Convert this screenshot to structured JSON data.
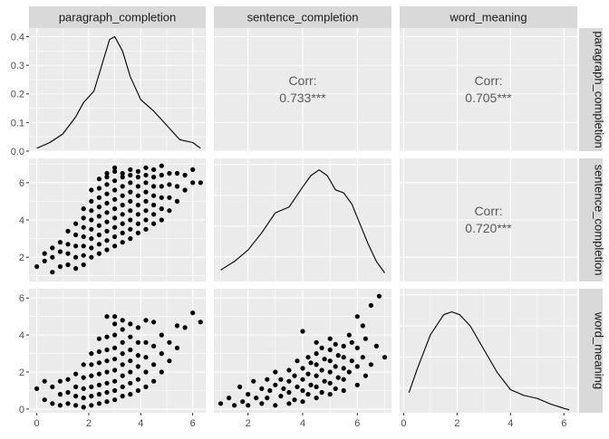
{
  "chart_data": {
    "type": "scatter-matrix",
    "variables": [
      "paragraph_completion",
      "sentence_completion",
      "word_meaning"
    ],
    "colors": {
      "panel_bg": "#EBEBEB",
      "strip_bg": "#D9D9D9",
      "grid": "#FFFFFF",
      "mark": "#000000",
      "corr_text": "#595959",
      "tick_text": "#4D4D4D"
    },
    "correlations": [
      {
        "row": 0,
        "col": 1,
        "label": "Corr:",
        "value": "0.733***"
      },
      {
        "row": 0,
        "col": 2,
        "label": "Corr:",
        "value": "0.705***"
      },
      {
        "row": 1,
        "col": 2,
        "label": "Corr:",
        "value": "0.720***"
      }
    ],
    "x_axes": [
      {
        "var": "paragraph_completion",
        "range": [
          -0.3,
          6.5
        ],
        "ticks": [
          0,
          2,
          4,
          6
        ],
        "tick_labels": [
          "0",
          "2",
          "4",
          "6"
        ]
      },
      {
        "var": "sentence_completion",
        "range": [
          0.75,
          7.25
        ],
        "ticks": [
          2,
          4,
          6
        ],
        "tick_labels": [
          "2",
          "4",
          "6"
        ]
      },
      {
        "var": "word_meaning",
        "range": [
          -0.15,
          6.5
        ],
        "ticks": [
          0,
          2,
          4,
          6
        ],
        "tick_labels": [
          "0",
          "2",
          "4",
          "6"
        ]
      }
    ],
    "y_axes": [
      {
        "var": "paragraph_completion",
        "range": [
          -0.02,
          0.43
        ],
        "ticks": [
          0.0,
          0.1,
          0.2,
          0.3,
          0.4
        ],
        "tick_labels": [
          "0.0",
          "0.1",
          "0.2",
          "0.3",
          "0.4"
        ]
      },
      {
        "var": "sentence_completion",
        "range": [
          0.7,
          7.3
        ],
        "ticks": [
          2,
          4,
          6
        ],
        "tick_labels": [
          "2",
          "4",
          "6"
        ]
      },
      {
        "var": "word_meaning",
        "range": [
          -0.2,
          6.5
        ],
        "ticks": [
          0,
          2,
          4,
          6
        ],
        "tick_labels": [
          "0",
          "2",
          "4",
          "6"
        ]
      }
    ],
    "density_range": [
      0,
      0.43
    ],
    "densities": [
      {
        "var": "paragraph_completion",
        "x": [
          0.0,
          0.5,
          1.0,
          1.5,
          1.8,
          2.2,
          2.5,
          2.8,
          3.0,
          3.3,
          3.6,
          4.0,
          4.5,
          5.0,
          5.5,
          6.0,
          6.3
        ],
        "y": [
          0.01,
          0.03,
          0.06,
          0.12,
          0.17,
          0.21,
          0.3,
          0.39,
          0.4,
          0.35,
          0.26,
          0.18,
          0.14,
          0.09,
          0.04,
          0.03,
          0.01
        ]
      },
      {
        "var": "sentence_completion",
        "x": [
          1.0,
          1.5,
          2.0,
          2.5,
          3.0,
          3.5,
          4.0,
          4.3,
          4.6,
          4.9,
          5.2,
          5.5,
          5.8,
          6.1,
          6.4,
          6.7,
          7.0
        ],
        "y": [
          0.04,
          0.07,
          0.11,
          0.17,
          0.24,
          0.26,
          0.33,
          0.37,
          0.39,
          0.37,
          0.32,
          0.31,
          0.27,
          0.2,
          0.13,
          0.07,
          0.03
        ]
      },
      {
        "var": "word_meaning",
        "x": [
          0.2,
          0.5,
          1.0,
          1.5,
          1.8,
          2.1,
          2.5,
          3.0,
          3.5,
          4.0,
          4.5,
          5.0,
          5.5,
          6.0,
          6.2
        ],
        "y": [
          0.07,
          0.15,
          0.27,
          0.34,
          0.35,
          0.34,
          0.3,
          0.22,
          0.14,
          0.08,
          0.06,
          0.05,
          0.03,
          0.015,
          0.01
        ]
      }
    ],
    "scatter_pc_sc": {
      "x": [
        0.0,
        0.3,
        0.3,
        0.6,
        0.6,
        0.6,
        0.9,
        0.9,
        0.9,
        1.2,
        1.2,
        1.2,
        1.2,
        1.5,
        1.5,
        1.5,
        1.5,
        1.5,
        1.8,
        1.8,
        1.8,
        1.8,
        1.8,
        1.8,
        1.8,
        2.1,
        2.1,
        2.1,
        2.1,
        2.1,
        2.1,
        2.1,
        2.1,
        2.4,
        2.4,
        2.4,
        2.4,
        2.4,
        2.4,
        2.4,
        2.4,
        2.4,
        2.7,
        2.7,
        2.7,
        2.7,
        2.7,
        2.7,
        2.7,
        2.7,
        2.7,
        2.7,
        3.0,
        3.0,
        3.0,
        3.0,
        3.0,
        3.0,
        3.0,
        3.0,
        3.0,
        3.0,
        3.3,
        3.3,
        3.3,
        3.3,
        3.3,
        3.3,
        3.3,
        3.3,
        3.3,
        3.6,
        3.6,
        3.6,
        3.6,
        3.6,
        3.6,
        3.6,
        3.6,
        3.6,
        3.9,
        3.9,
        3.9,
        3.9,
        3.9,
        3.9,
        3.9,
        3.9,
        4.2,
        4.2,
        4.2,
        4.2,
        4.2,
        4.2,
        4.2,
        4.2,
        4.5,
        4.5,
        4.5,
        4.5,
        4.5,
        4.5,
        4.5,
        4.8,
        4.8,
        4.8,
        4.8,
        4.8,
        4.8,
        5.1,
        5.1,
        5.1,
        5.1,
        5.4,
        5.4,
        5.4,
        5.7,
        5.7,
        6.0,
        6.0,
        6.3
      ],
      "y": [
        1.5,
        1.8,
        2.2,
        1.2,
        2.0,
        2.5,
        1.5,
        2.3,
        2.8,
        1.6,
        2.2,
        2.7,
        3.4,
        1.4,
        2.0,
        2.6,
        3.2,
        3.8,
        1.6,
        2.1,
        2.6,
        3.1,
        3.6,
        4.1,
        4.6,
        2.0,
        2.5,
        3.0,
        3.5,
        4.0,
        4.5,
        5.0,
        5.6,
        2.2,
        2.7,
        3.2,
        3.7,
        4.2,
        4.7,
        5.2,
        5.7,
        6.2,
        2.4,
        2.9,
        3.4,
        3.9,
        4.4,
        4.9,
        5.4,
        5.9,
        6.3,
        6.5,
        2.6,
        3.1,
        3.6,
        4.1,
        4.6,
        5.1,
        5.6,
        6.1,
        6.6,
        6.8,
        2.8,
        3.3,
        3.8,
        4.3,
        4.8,
        5.3,
        5.8,
        6.3,
        6.5,
        3.0,
        3.5,
        4.0,
        4.5,
        5.0,
        5.5,
        6.0,
        6.4,
        6.7,
        3.3,
        3.8,
        4.3,
        4.8,
        5.3,
        5.8,
        6.3,
        6.6,
        3.5,
        4.0,
        4.5,
        5.0,
        5.5,
        6.0,
        6.4,
        6.8,
        3.8,
        4.3,
        4.8,
        5.3,
        5.8,
        6.3,
        6.7,
        4.0,
        4.6,
        5.2,
        5.8,
        6.4,
        6.9,
        4.5,
        5.2,
        5.9,
        6.5,
        5.0,
        5.8,
        6.5,
        5.6,
        6.4,
        6.0,
        6.7,
        6.0
      ]
    },
    "scatter_pc_wm": {
      "x": [
        0.0,
        0.3,
        0.3,
        0.6,
        0.6,
        0.9,
        0.9,
        0.9,
        1.2,
        1.2,
        1.2,
        1.5,
        1.5,
        1.5,
        1.5,
        1.8,
        1.8,
        1.8,
        1.8,
        1.8,
        2.1,
        2.1,
        2.1,
        2.1,
        2.1,
        2.1,
        2.4,
        2.4,
        2.4,
        2.4,
        2.4,
        2.4,
        2.4,
        2.7,
        2.7,
        2.7,
        2.7,
        2.7,
        2.7,
        2.7,
        2.7,
        3.0,
        3.0,
        3.0,
        3.0,
        3.0,
        3.0,
        3.0,
        3.0,
        3.0,
        3.3,
        3.3,
        3.3,
        3.3,
        3.3,
        3.3,
        3.3,
        3.3,
        3.6,
        3.6,
        3.6,
        3.6,
        3.6,
        3.6,
        3.6,
        3.9,
        3.9,
        3.9,
        3.9,
        3.9,
        3.9,
        4.2,
        4.2,
        4.2,
        4.2,
        4.2,
        4.5,
        4.5,
        4.5,
        4.5,
        4.8,
        4.8,
        4.8,
        5.1,
        5.1,
        5.4,
        5.4,
        5.7,
        6.0,
        6.3
      ],
      "y": [
        1.1,
        0.5,
        1.5,
        0.3,
        1.2,
        0.2,
        0.8,
        1.5,
        0.3,
        0.9,
        1.6,
        0.2,
        0.7,
        1.2,
        1.9,
        0.1,
        0.6,
        1.1,
        1.7,
        2.4,
        0.2,
        0.7,
        1.2,
        1.8,
        2.4,
        3.0,
        0.3,
        0.8,
        1.3,
        1.9,
        2.5,
        3.1,
        3.8,
        0.4,
        0.9,
        1.4,
        2.0,
        2.6,
        3.2,
        3.9,
        5.0,
        0.5,
        1.0,
        1.5,
        2.1,
        2.7,
        3.3,
        4.0,
        4.6,
        5.0,
        0.7,
        1.2,
        1.8,
        2.4,
        3.0,
        3.6,
        4.3,
        4.8,
        0.8,
        1.4,
        2.0,
        2.6,
        3.2,
        3.9,
        4.6,
        1.0,
        1.6,
        2.3,
        2.9,
        3.6,
        4.4,
        1.2,
        2.0,
        2.8,
        3.6,
        4.8,
        1.5,
        2.4,
        3.4,
        4.7,
        2.0,
        3.0,
        4.0,
        2.6,
        3.6,
        3.3,
        4.5,
        4.4,
        5.2,
        4.7
      ]
    },
    "scatter_sc_wm": {
      "x": [
        1.0,
        1.3,
        1.5,
        1.7,
        1.8,
        2.0,
        2.0,
        2.2,
        2.3,
        2.5,
        2.5,
        2.7,
        2.7,
        2.8,
        3.0,
        3.0,
        3.0,
        3.2,
        3.2,
        3.3,
        3.5,
        3.5,
        3.5,
        3.5,
        3.7,
        3.7,
        3.8,
        3.8,
        4.0,
        4.0,
        4.0,
        4.0,
        4.0,
        4.2,
        4.2,
        4.2,
        4.3,
        4.3,
        4.5,
        4.5,
        4.5,
        4.5,
        4.5,
        4.5,
        4.7,
        4.7,
        4.7,
        4.8,
        4.8,
        5.0,
        5.0,
        5.0,
        5.0,
        5.0,
        5.0,
        5.2,
        5.2,
        5.2,
        5.3,
        5.3,
        5.5,
        5.5,
        5.5,
        5.5,
        5.5,
        5.7,
        5.7,
        5.8,
        5.8,
        6.0,
        6.0,
        6.0,
        6.0,
        6.2,
        6.2,
        6.3,
        6.3,
        6.5,
        6.5,
        6.7,
        6.8,
        7.0
      ],
      "y": [
        0.3,
        0.6,
        0.2,
        1.2,
        0.4,
        0.8,
        0.2,
        1.5,
        0.6,
        1.1,
        0.3,
        1.6,
        0.6,
        1.0,
        0.2,
        1.3,
        2.0,
        0.7,
        1.6,
        1.1,
        0.3,
        0.9,
        1.5,
        2.1,
        0.5,
        1.8,
        1.2,
        2.6,
        0.4,
        1.0,
        1.6,
        2.2,
        4.2,
        0.8,
        1.9,
        2.8,
        1.3,
        2.5,
        0.6,
        1.2,
        1.8,
        2.4,
        3.0,
        3.6,
        0.9,
        2.1,
        3.3,
        1.5,
        2.7,
        0.8,
        1.4,
        2.0,
        2.6,
        3.2,
        3.8,
        1.1,
        2.3,
        3.5,
        1.7,
        2.9,
        1.0,
        1.6,
        2.2,
        2.8,
        3.4,
        2.0,
        4.0,
        2.6,
        3.6,
        1.3,
        2.3,
        3.3,
        5.0,
        2.8,
        4.5,
        1.8,
        3.8,
        2.4,
        5.6,
        3.4,
        6.1,
        2.8
      ]
    }
  }
}
